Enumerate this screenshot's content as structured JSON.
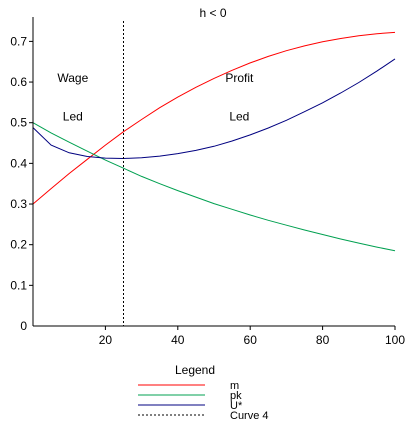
{
  "chart_data": {
    "type": "line",
    "title": "h < 0",
    "xlabel": "",
    "ylabel": "",
    "xlim": [
      0,
      100
    ],
    "ylim": [
      0,
      0.76
    ],
    "x_ticks": [
      20,
      40,
      60,
      80,
      100
    ],
    "x_tick_labels": [
      "20",
      "40",
      "60",
      "80",
      "100"
    ],
    "y_ticks": [
      0.1,
      0.2,
      0.3,
      0.4,
      0.5,
      0.6,
      0.7
    ],
    "y_tick_labels": [
      "0.1",
      "0.2",
      "0.3",
      "0.4",
      "0.5",
      "0.6",
      "0.7"
    ],
    "origin_label": "0",
    "grid": false,
    "annotations": [
      {
        "lines": [
          "Wage",
          "Led"
        ],
        "x": 11,
        "y": [
          0.61,
          0.515
        ]
      },
      {
        "lines": [
          "Profit",
          "Led"
        ],
        "x": 57,
        "y": [
          0.61,
          0.515
        ]
      }
    ],
    "vline": {
      "x": 25,
      "name": "Curve 4",
      "color": "#000000",
      "dashed": true
    },
    "series": [
      {
        "name": "m",
        "color": "#ff0000",
        "x": [
          0,
          5,
          10,
          15,
          20,
          25,
          30,
          35,
          40,
          45,
          50,
          55,
          60,
          65,
          70,
          75,
          80,
          85,
          90,
          95,
          100
        ],
        "values": [
          0.3,
          0.338,
          0.375,
          0.41,
          0.445,
          0.478,
          0.508,
          0.537,
          0.563,
          0.587,
          0.609,
          0.629,
          0.647,
          0.663,
          0.677,
          0.689,
          0.699,
          0.707,
          0.714,
          0.719,
          0.722
        ]
      },
      {
        "name": "pk",
        "color": "#00a050",
        "x": [
          0,
          5,
          10,
          15,
          20,
          25,
          30,
          35,
          40,
          45,
          50,
          55,
          60,
          65,
          70,
          75,
          80,
          85,
          90,
          95,
          100
        ],
        "values": [
          0.5,
          0.475,
          0.452,
          0.43,
          0.408,
          0.388,
          0.368,
          0.35,
          0.333,
          0.317,
          0.301,
          0.287,
          0.273,
          0.26,
          0.248,
          0.236,
          0.225,
          0.214,
          0.204,
          0.194,
          0.185
        ]
      },
      {
        "name": "U*",
        "color": "#000080",
        "x": [
          0,
          5,
          10,
          15,
          20,
          25,
          30,
          35,
          40,
          45,
          50,
          55,
          60,
          65,
          70,
          75,
          80,
          85,
          90,
          95,
          100
        ],
        "values": [
          0.488,
          0.445,
          0.426,
          0.417,
          0.413,
          0.412,
          0.414,
          0.418,
          0.424,
          0.432,
          0.442,
          0.455,
          0.47,
          0.487,
          0.506,
          0.527,
          0.549,
          0.573,
          0.599,
          0.627,
          0.657
        ]
      }
    ],
    "legend": {
      "title": "Legend",
      "position": "bottom-center",
      "entries": [
        "m",
        "pk",
        "U*",
        "Curve 4"
      ]
    }
  }
}
